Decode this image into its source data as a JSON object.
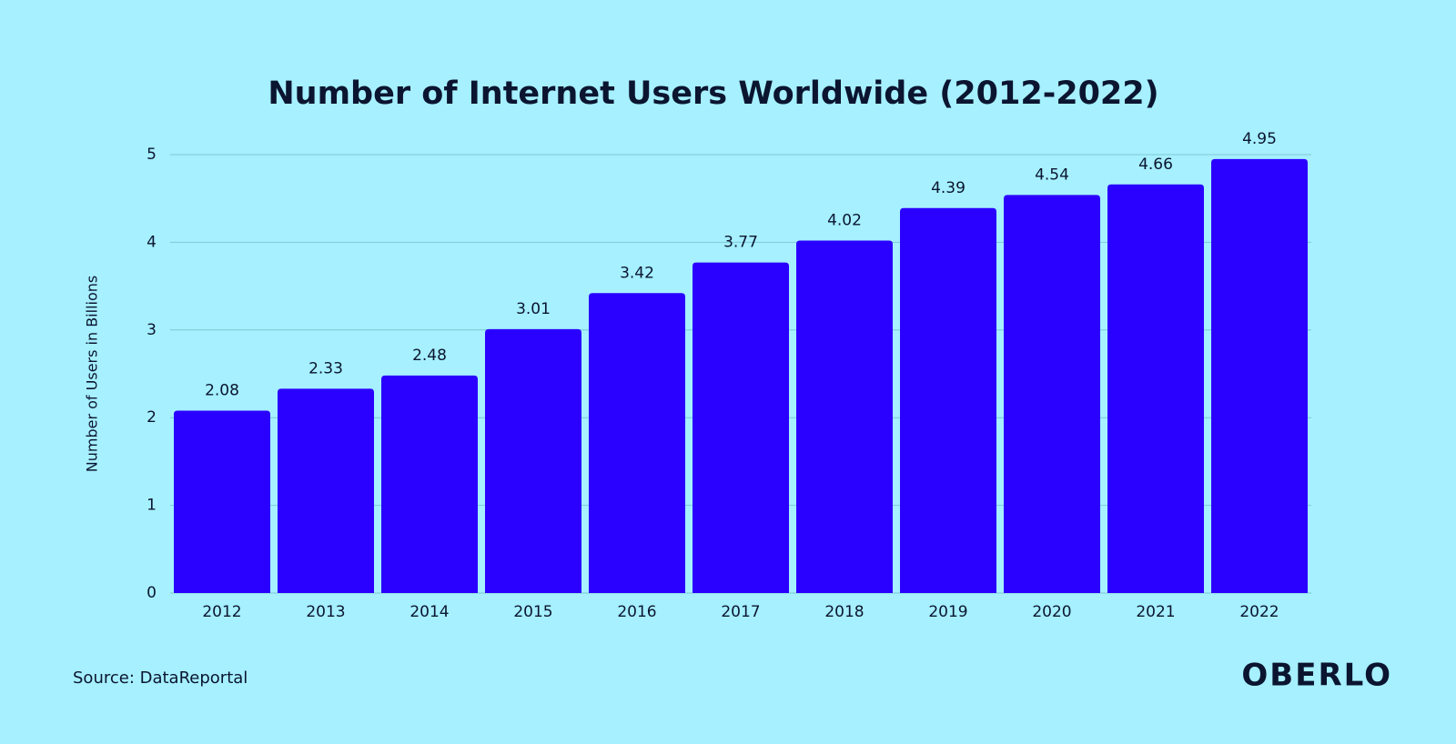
{
  "chart_data": {
    "type": "bar",
    "title": "Number of Internet Users Worldwide (2012-2022)",
    "y_label": "Number of Users in Billions",
    "categories": [
      "2012",
      "2013",
      "2014",
      "2015",
      "2016",
      "2017",
      "2018",
      "2019",
      "2020",
      "2021",
      "2022"
    ],
    "values": [
      2.08,
      2.33,
      2.48,
      3.01,
      3.42,
      3.77,
      4.02,
      4.39,
      4.54,
      4.66,
      4.95
    ],
    "color": "#2a00ff",
    "ylim": [
      0,
      5
    ],
    "yticks": [
      0,
      1,
      2,
      3,
      4,
      5
    ],
    "grid": true,
    "source": "Source: DataReportal",
    "brand": "OBERLO"
  }
}
